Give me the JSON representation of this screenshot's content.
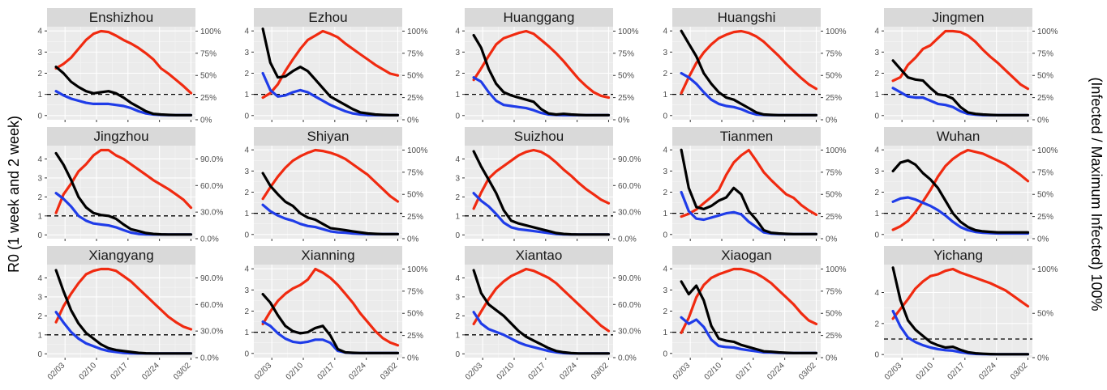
{
  "chart_data": {
    "type": "line",
    "ylabel_left": "R0 (1 week and 2 week)",
    "ylabel_right": "(Infected / Maximum Infected) 100%",
    "x_ticks": [
      "02/03",
      "02/10",
      "02/17",
      "02/24",
      "03/02"
    ],
    "x_range": [
      "2020-01-30",
      "2020-03-03"
    ],
    "series_colors": {
      "r0_1week": "#000000",
      "r0_2week": "#1f3ce8",
      "infected_pct": "#f02a10"
    },
    "reference_line": {
      "y": 1,
      "style": "dashed"
    },
    "grid": true,
    "panels": [
      {
        "name": "Enshizhou",
        "ylim": [
          -0.2,
          4.2
        ],
        "yticks": [
          0,
          1,
          2,
          3,
          4
        ],
        "right_ticks": [
          "0%",
          "25%",
          "50%",
          "75%",
          "100%"
        ],
        "r0_1week": [
          2.3,
          2.0,
          1.6,
          1.35,
          1.15,
          1.05,
          1.1,
          1.15,
          1.05,
          0.85,
          0.6,
          0.4,
          0.2,
          0.08,
          0.05,
          0.03,
          0.02,
          0.02,
          0.02
        ],
        "r0_2week": [
          1.15,
          0.95,
          0.8,
          0.7,
          0.6,
          0.55,
          0.55,
          0.55,
          0.5,
          0.45,
          0.35,
          0.2,
          0.1,
          0.05,
          0.03,
          0.02,
          0.02,
          0.02,
          0.02
        ],
        "infected_pct": [
          58,
          63,
          70,
          80,
          90,
          97,
          100,
          99,
          95,
          90,
          86,
          81,
          75,
          68,
          58,
          52,
          45,
          38,
          30
        ]
      },
      {
        "name": "Ezhou",
        "ylim": [
          -0.2,
          4.2
        ],
        "yticks": [
          0,
          1,
          2,
          3,
          4
        ],
        "right_ticks": [
          "0%",
          "25%",
          "50%",
          "75%",
          "100%"
        ],
        "r0_1week": [
          4.1,
          2.5,
          1.8,
          1.85,
          2.1,
          2.3,
          2.1,
          1.7,
          1.3,
          0.9,
          0.7,
          0.5,
          0.3,
          0.15,
          0.1,
          0.05,
          0.03,
          0.02,
          0.02
        ],
        "r0_2week": [
          2.0,
          1.2,
          0.9,
          0.95,
          1.1,
          1.2,
          1.1,
          0.9,
          0.7,
          0.5,
          0.35,
          0.2,
          0.1,
          0.05,
          0.02,
          0.02,
          0.02,
          0.02,
          0.02
        ],
        "infected_pct": [
          25,
          30,
          40,
          55,
          68,
          80,
          90,
          95,
          100,
          97,
          93,
          86,
          80,
          74,
          68,
          62,
          57,
          52,
          50
        ]
      },
      {
        "name": "Huanggang",
        "ylim": [
          -0.2,
          4.2
        ],
        "yticks": [
          0,
          1,
          2,
          3,
          4
        ],
        "right_ticks": [
          "0%",
          "25%",
          "50%",
          "75%",
          "100%"
        ],
        "r0_1week": [
          3.8,
          3.2,
          2.2,
          1.5,
          1.1,
          0.95,
          0.85,
          0.75,
          0.65,
          0.3,
          0.1,
          0.05,
          0.08,
          0.05,
          0.03,
          0.02,
          0.02,
          0.02,
          0.02
        ],
        "r0_2week": [
          1.8,
          1.6,
          1.1,
          0.7,
          0.5,
          0.45,
          0.4,
          0.35,
          0.25,
          0.12,
          0.05,
          0.03,
          0.02,
          0.02,
          0.02,
          0.02,
          0.02,
          0.02,
          0.02
        ],
        "infected_pct": [
          45,
          58,
          72,
          85,
          92,
          95,
          98,
          100,
          97,
          90,
          83,
          75,
          66,
          56,
          46,
          38,
          31,
          27,
          25
        ]
      },
      {
        "name": "Huangshi",
        "ylim": [
          -0.2,
          4.2
        ],
        "yticks": [
          0,
          1,
          2,
          3,
          4
        ],
        "right_ticks": [
          "0%",
          "25%",
          "50%",
          "75%",
          "100%"
        ],
        "r0_1week": [
          4.0,
          3.4,
          2.8,
          2.0,
          1.5,
          1.1,
          0.85,
          0.75,
          0.55,
          0.35,
          0.15,
          0.05,
          0.03,
          0.02,
          0.02,
          0.02,
          0.02,
          0.02,
          0.02
        ],
        "r0_2week": [
          2.0,
          1.8,
          1.5,
          1.1,
          0.75,
          0.55,
          0.45,
          0.4,
          0.3,
          0.15,
          0.05,
          0.03,
          0.02,
          0.02,
          0.02,
          0.02,
          0.02,
          0.02,
          0.02
        ],
        "infected_pct": [
          30,
          48,
          64,
          76,
          85,
          92,
          96,
          99,
          100,
          98,
          94,
          88,
          80,
          72,
          63,
          55,
          47,
          40,
          35
        ]
      },
      {
        "name": "Jingmen",
        "ylim": [
          -0.2,
          4.2
        ],
        "yticks": [
          0,
          1,
          2,
          3,
          4
        ],
        "right_ticks": [
          "0%",
          "25%",
          "50%",
          "75%",
          "100%"
        ],
        "r0_1week": [
          2.6,
          2.2,
          1.8,
          1.7,
          1.65,
          1.3,
          1.0,
          0.95,
          0.8,
          0.4,
          0.15,
          0.08,
          0.05,
          0.03,
          0.02,
          0.02,
          0.02,
          0.02,
          0.02
        ],
        "r0_2week": [
          1.3,
          1.1,
          0.9,
          0.85,
          0.85,
          0.7,
          0.55,
          0.5,
          0.4,
          0.2,
          0.08,
          0.04,
          0.02,
          0.02,
          0.02,
          0.02,
          0.02,
          0.02,
          0.02
        ],
        "infected_pct": [
          44,
          48,
          62,
          70,
          80,
          84,
          92,
          100,
          100,
          99,
          95,
          88,
          79,
          71,
          64,
          56,
          48,
          40,
          35
        ]
      },
      {
        "name": "Jingzhou",
        "ylim": [
          -0.2,
          4.7
        ],
        "yticks": [
          0,
          1,
          2,
          3,
          4
        ],
        "right_ticks": [
          "0.0%",
          "30.0%",
          "60.0%",
          "90.0%"
        ],
        "r0_1week": [
          4.3,
          3.7,
          2.9,
          2.0,
          1.45,
          1.15,
          1.05,
          1.0,
          0.85,
          0.55,
          0.3,
          0.2,
          0.1,
          0.05,
          0.03,
          0.02,
          0.02,
          0.02,
          0.02
        ],
        "r0_2week": [
          2.2,
          1.9,
          1.5,
          1.0,
          0.75,
          0.6,
          0.55,
          0.5,
          0.4,
          0.25,
          0.12,
          0.05,
          0.03,
          0.02,
          0.02,
          0.02,
          0.02,
          0.02,
          0.02
        ],
        "infected_pct": [
          29,
          50,
          62,
          76,
          84,
          94,
          100,
          100,
          94,
          90,
          84,
          78,
          72,
          66,
          61,
          56,
          50,
          44,
          35
        ]
      },
      {
        "name": "Shiyan",
        "ylim": [
          -0.2,
          4.2
        ],
        "yticks": [
          0,
          1,
          2,
          3,
          4
        ],
        "right_ticks": [
          "0%",
          "25%",
          "50%",
          "75%",
          "100%"
        ],
        "r0_1week": [
          2.9,
          2.3,
          1.9,
          1.55,
          1.35,
          1.0,
          0.8,
          0.7,
          0.5,
          0.3,
          0.25,
          0.2,
          0.15,
          0.1,
          0.05,
          0.03,
          0.02,
          0.02,
          0.02
        ],
        "r0_2week": [
          1.4,
          1.1,
          0.9,
          0.75,
          0.65,
          0.5,
          0.4,
          0.35,
          0.25,
          0.15,
          0.1,
          0.08,
          0.05,
          0.03,
          0.02,
          0.02,
          0.02,
          0.02,
          0.02
        ],
        "infected_pct": [
          45,
          58,
          70,
          80,
          88,
          93,
          97,
          100,
          99,
          97,
          94,
          90,
          84,
          78,
          72,
          64,
          56,
          48,
          42
        ]
      },
      {
        "name": "Suizhou",
        "ylim": [
          -0.2,
          4.7
        ],
        "yticks": [
          0,
          1,
          2,
          3,
          4
        ],
        "right_ticks": [
          "0.0%",
          "30.0%",
          "60.0%",
          "90.0%"
        ],
        "r0_1week": [
          4.4,
          3.6,
          2.9,
          2.2,
          1.3,
          0.75,
          0.6,
          0.5,
          0.4,
          0.3,
          0.2,
          0.1,
          0.05,
          0.03,
          0.02,
          0.02,
          0.02,
          0.02,
          0.02
        ],
        "r0_2week": [
          2.2,
          1.8,
          1.5,
          1.1,
          0.65,
          0.4,
          0.3,
          0.25,
          0.2,
          0.15,
          0.1,
          0.05,
          0.03,
          0.02,
          0.02,
          0.02,
          0.02,
          0.02,
          0.02
        ],
        "infected_pct": [
          34,
          52,
          68,
          76,
          82,
          88,
          94,
          98,
          100,
          98,
          93,
          86,
          78,
          71,
          63,
          56,
          50,
          44,
          40
        ]
      },
      {
        "name": "Tianmen",
        "ylim": [
          -0.2,
          4.2
        ],
        "yticks": [
          0,
          1,
          2,
          3,
          4
        ],
        "right_ticks": [
          "0%",
          "25%",
          "50%",
          "75%",
          "100%"
        ],
        "r0_1week": [
          4.0,
          2.2,
          1.3,
          1.2,
          1.35,
          1.6,
          1.75,
          2.2,
          1.9,
          1.1,
          0.7,
          0.2,
          0.08,
          0.05,
          0.03,
          0.02,
          0.02,
          0.02,
          0.02
        ],
        "r0_2week": [
          2.0,
          1.1,
          0.75,
          0.7,
          0.8,
          0.9,
          1.0,
          1.05,
          0.95,
          0.6,
          0.35,
          0.1,
          0.04,
          0.03,
          0.02,
          0.02,
          0.02,
          0.02,
          0.02
        ],
        "infected_pct": [
          25,
          28,
          33,
          40,
          47,
          55,
          72,
          86,
          94,
          100,
          88,
          75,
          66,
          58,
          50,
          46,
          38,
          32,
          27
        ]
      },
      {
        "name": "Wuhan",
        "ylim": [
          -0.2,
          4.2
        ],
        "yticks": [
          0,
          1,
          2,
          3,
          4
        ],
        "right_ticks": [
          "0%",
          "25%",
          "50%",
          "75%",
          "100%"
        ],
        "r0_1week": [
          3.0,
          3.4,
          3.5,
          3.3,
          2.9,
          2.6,
          2.2,
          1.6,
          1.0,
          0.6,
          0.35,
          0.2,
          0.15,
          0.12,
          0.1,
          0.1,
          0.1,
          0.1,
          0.1
        ],
        "r0_2week": [
          1.55,
          1.7,
          1.75,
          1.65,
          1.5,
          1.35,
          1.15,
          0.9,
          0.6,
          0.35,
          0.2,
          0.12,
          0.08,
          0.06,
          0.05,
          0.05,
          0.05,
          0.05,
          0.05
        ],
        "infected_pct": [
          10,
          14,
          20,
          30,
          42,
          55,
          70,
          82,
          90,
          96,
          100,
          98,
          96,
          92,
          88,
          84,
          78,
          72,
          65
        ]
      },
      {
        "name": "Xiangyang",
        "ylim": [
          -0.2,
          4.7
        ],
        "yticks": [
          0,
          1,
          2,
          3,
          4
        ],
        "right_ticks": [
          "0.0%",
          "30.0%",
          "60.0%",
          "90.0%"
        ],
        "r0_1week": [
          4.4,
          3.3,
          2.3,
          1.6,
          1.1,
          0.8,
          0.5,
          0.3,
          0.2,
          0.15,
          0.1,
          0.05,
          0.03,
          0.02,
          0.02,
          0.02,
          0.02,
          0.02,
          0.02
        ],
        "r0_2week": [
          2.2,
          1.65,
          1.15,
          0.8,
          0.55,
          0.4,
          0.25,
          0.15,
          0.1,
          0.05,
          0.03,
          0.02,
          0.02,
          0.02,
          0.02,
          0.02,
          0.02,
          0.02,
          0.02
        ],
        "infected_pct": [
          40,
          58,
          72,
          84,
          94,
          98,
          100,
          100,
          98,
          92,
          86,
          78,
          70,
          62,
          54,
          46,
          40,
          35,
          32
        ]
      },
      {
        "name": "Xianning",
        "ylim": [
          -0.2,
          4.2
        ],
        "yticks": [
          0,
          1,
          2,
          3,
          4
        ],
        "right_ticks": [
          "0%",
          "25%",
          "50%",
          "75%",
          "100%"
        ],
        "r0_1week": [
          2.8,
          2.4,
          1.8,
          1.3,
          1.05,
          0.95,
          1.0,
          1.2,
          1.3,
          0.85,
          0.2,
          0.05,
          0.03,
          0.02,
          0.02,
          0.02,
          0.02,
          0.02,
          0.02
        ],
        "r0_2week": [
          1.5,
          1.3,
          0.95,
          0.7,
          0.55,
          0.5,
          0.55,
          0.65,
          0.65,
          0.5,
          0.12,
          0.04,
          0.02,
          0.02,
          0.02,
          0.02,
          0.02,
          0.02,
          0.02
        ],
        "infected_pct": [
          38,
          52,
          64,
          72,
          78,
          82,
          88,
          100,
          96,
          90,
          82,
          72,
          62,
          50,
          40,
          30,
          22,
          17,
          14
        ]
      },
      {
        "name": "Xiantao",
        "ylim": [
          -0.2,
          4.7
        ],
        "yticks": [
          0,
          1,
          2,
          3,
          4
        ],
        "right_ticks": [
          "0.0%",
          "30.0%",
          "60.0%",
          "90.0%"
        ],
        "r0_1week": [
          4.4,
          3.2,
          2.6,
          2.3,
          2.0,
          1.6,
          1.2,
          0.9,
          0.7,
          0.5,
          0.3,
          0.15,
          0.08,
          0.04,
          0.02,
          0.02,
          0.02,
          0.02,
          0.02
        ],
        "r0_2week": [
          2.2,
          1.6,
          1.3,
          1.15,
          1.0,
          0.8,
          0.6,
          0.45,
          0.35,
          0.25,
          0.15,
          0.08,
          0.04,
          0.02,
          0.02,
          0.02,
          0.02,
          0.02,
          0.02
        ],
        "infected_pct": [
          38,
          52,
          66,
          78,
          86,
          92,
          96,
          100,
          98,
          94,
          90,
          84,
          76,
          68,
          60,
          52,
          44,
          36,
          30
        ]
      },
      {
        "name": "Xiaogan",
        "ylim": [
          -0.2,
          4.2
        ],
        "yticks": [
          0,
          1,
          2,
          3,
          4
        ],
        "right_ticks": [
          "0%",
          "25%",
          "50%",
          "75%",
          "100%"
        ],
        "r0_1week": [
          3.4,
          2.8,
          3.2,
          2.5,
          1.3,
          0.7,
          0.6,
          0.55,
          0.4,
          0.3,
          0.2,
          0.1,
          0.08,
          0.05,
          0.03,
          0.02,
          0.02,
          0.02,
          0.02
        ],
        "r0_2week": [
          1.7,
          1.4,
          1.6,
          1.25,
          0.65,
          0.35,
          0.3,
          0.28,
          0.2,
          0.15,
          0.1,
          0.05,
          0.04,
          0.03,
          0.02,
          0.02,
          0.02,
          0.02,
          0.02
        ],
        "infected_pct": [
          28,
          45,
          68,
          82,
          90,
          94,
          97,
          100,
          100,
          98,
          95,
          90,
          84,
          76,
          68,
          60,
          50,
          42,
          38
        ]
      },
      {
        "name": "Yichang",
        "ylim": [
          -0.2,
          5.8
        ],
        "yticks": [
          0,
          2,
          4
        ],
        "right_ticks": [
          "0%",
          "50%",
          "100%"
        ],
        "r0_1week": [
          5.6,
          3.5,
          2.2,
          1.6,
          1.2,
          0.8,
          0.6,
          0.45,
          0.5,
          0.3,
          0.15,
          0.08,
          0.05,
          0.03,
          0.02,
          0.02,
          0.02,
          0.02,
          0.02
        ],
        "r0_2week": [
          2.8,
          1.8,
          1.1,
          0.8,
          0.6,
          0.45,
          0.35,
          0.28,
          0.25,
          0.15,
          0.08,
          0.04,
          0.03,
          0.02,
          0.02,
          0.02,
          0.02,
          0.02,
          0.02
        ],
        "infected_pct": [
          44,
          55,
          66,
          78,
          86,
          92,
          94,
          98,
          100,
          96,
          93,
          90,
          87,
          84,
          80,
          76,
          70,
          64,
          58
        ]
      }
    ]
  }
}
